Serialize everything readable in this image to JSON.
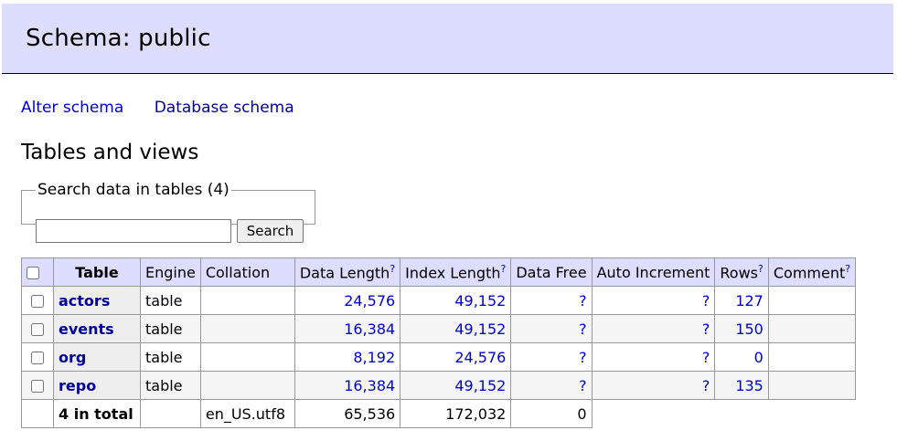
{
  "header": {
    "title": "Schema: public"
  },
  "links": {
    "alter": "Alter schema",
    "database": "Database schema"
  },
  "section": {
    "title": "Tables and views"
  },
  "search": {
    "legend": "Search data in tables (4)",
    "value": "",
    "button": "Search"
  },
  "table": {
    "headers": {
      "table": "Table",
      "engine": "Engine",
      "collation": "Collation",
      "data_length": "Data Length",
      "index_length": "Index Length",
      "data_free": "Data Free",
      "auto_increment": "Auto Increment",
      "rows": "Rows",
      "comment": "Comment",
      "help": "?"
    },
    "rows": [
      {
        "name": "actors",
        "engine": "table",
        "collation": "",
        "data_length": "24,576",
        "index_length": "49,152",
        "data_free": "?",
        "auto_increment": "?",
        "rows": "127",
        "comment": ""
      },
      {
        "name": "events",
        "engine": "table",
        "collation": "",
        "data_length": "16,384",
        "index_length": "49,152",
        "data_free": "?",
        "auto_increment": "?",
        "rows": "150",
        "comment": ""
      },
      {
        "name": "org",
        "engine": "table",
        "collation": "",
        "data_length": "8,192",
        "index_length": "24,576",
        "data_free": "?",
        "auto_increment": "?",
        "rows": "0",
        "comment": ""
      },
      {
        "name": "repo",
        "engine": "table",
        "collation": "",
        "data_length": "16,384",
        "index_length": "49,152",
        "data_free": "?",
        "auto_increment": "?",
        "rows": "135",
        "comment": ""
      }
    ],
    "total": {
      "label": "4 in total",
      "collation": "en_US.utf8",
      "data_length": "65,536",
      "index_length": "172,032",
      "data_free": "0"
    }
  }
}
